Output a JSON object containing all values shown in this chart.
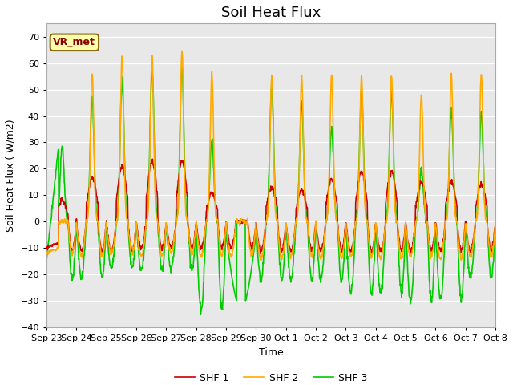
{
  "title": "Soil Heat Flux",
  "xlabel": "Time",
  "ylabel": "Soil Heat Flux ( W/m2)",
  "ylim": [
    -40,
    75
  ],
  "fig_bg_color": "#ffffff",
  "plot_bg_color": "#e8e8e8",
  "grid_color": "white",
  "shf1_color": "#cc0000",
  "shf2_color": "#ffaa00",
  "shf3_color": "#00cc00",
  "legend_labels": [
    "SHF 1",
    "SHF 2",
    "SHF 3"
  ],
  "annotation_text": "VR_met",
  "annotation_color": "#8B0000",
  "annotation_bg": "#ffffaa",
  "annotation_edge": "#8B6914",
  "title_fontsize": 13,
  "label_fontsize": 9,
  "tick_fontsize": 8,
  "xtick_labels": [
    "Sep 23",
    "Sep 24",
    "Sep 25",
    "Sep 26",
    "Sep 27",
    "Sep 28",
    "Sep 29",
    "Sep 30",
    "Oct 1",
    "Oct 2",
    "Oct 3",
    "Oct 4",
    "Oct 5",
    "Oct 6",
    "Oct 7",
    "Oct 8"
  ],
  "line_width": 1.2
}
